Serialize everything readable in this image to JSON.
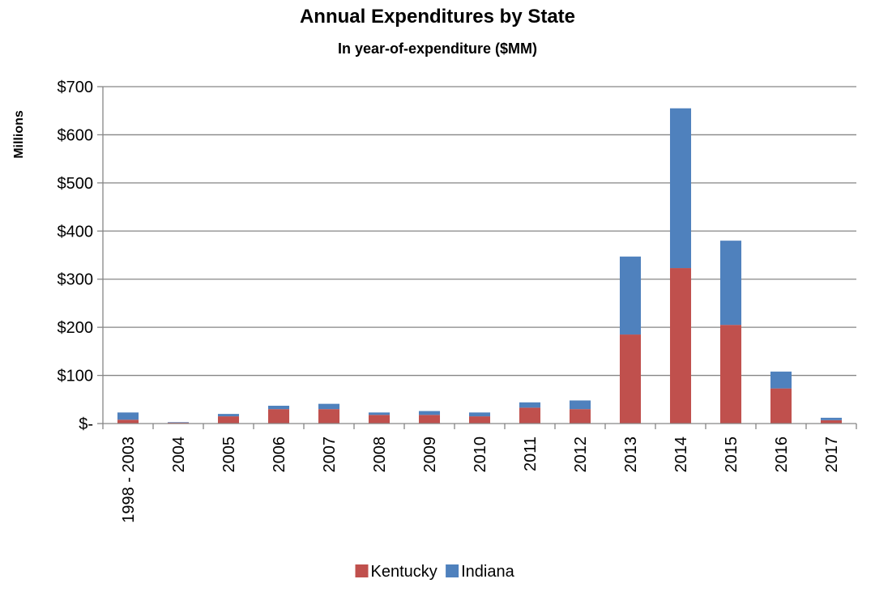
{
  "chart_data": {
    "type": "bar",
    "stacked": true,
    "title": "Annual Expenditures by State",
    "subtitle": "In year-of-expenditure ($MM)",
    "xlabel": "",
    "ylabel": "Millions",
    "ylim": [
      0,
      700
    ],
    "yticks": [
      {
        "value": 0,
        "label": "$-"
      },
      {
        "value": 100,
        "label": "$100"
      },
      {
        "value": 200,
        "label": "$200"
      },
      {
        "value": 300,
        "label": "$300"
      },
      {
        "value": 400,
        "label": "$400"
      },
      {
        "value": 500,
        "label": "$500"
      },
      {
        "value": 600,
        "label": "$600"
      },
      {
        "value": 700,
        "label": "$700"
      }
    ],
    "grid": true,
    "legend_position": "bottom",
    "categories": [
      "1998 - 2003",
      "2004",
      "2005",
      "2006",
      "2007",
      "2008",
      "2009",
      "2010",
      "2011",
      "2012",
      "2013",
      "2014",
      "2015",
      "2016",
      "2017"
    ],
    "series": [
      {
        "name": "Kentucky",
        "color": "#c0504d",
        "values": [
          8,
          2,
          15,
          30,
          30,
          18,
          18,
          15,
          33,
          30,
          185,
          323,
          205,
          73,
          7
        ]
      },
      {
        "name": "Indiana",
        "color": "#4f81bd",
        "values": [
          15,
          1,
          5,
          7,
          11,
          5,
          8,
          8,
          11,
          18,
          162,
          332,
          175,
          35,
          5
        ]
      }
    ]
  }
}
